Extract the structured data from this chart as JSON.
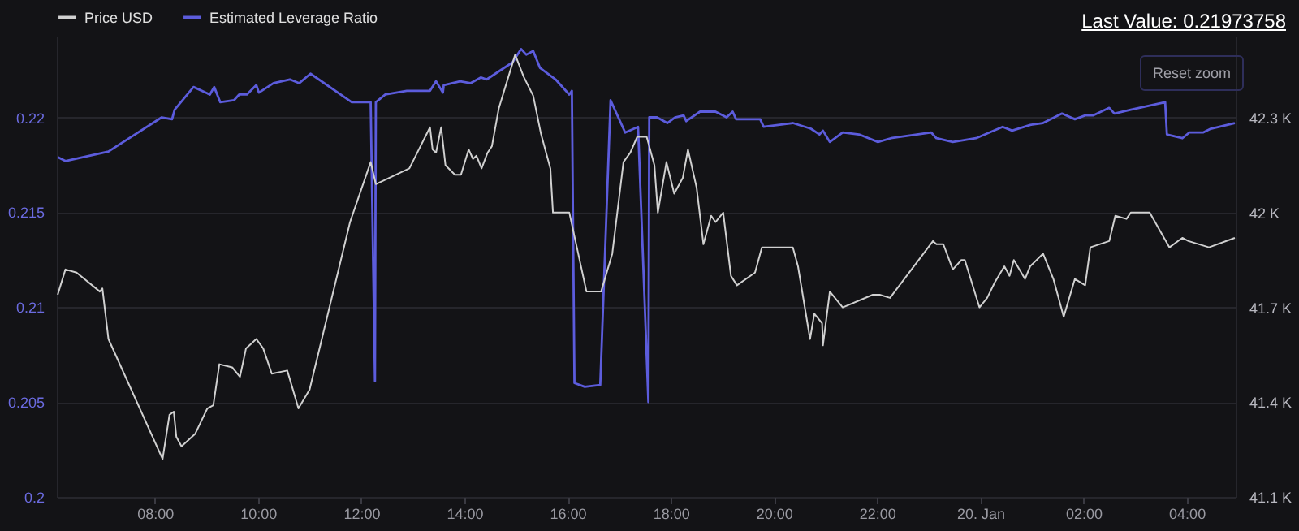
{
  "chart_data": {
    "type": "line",
    "annotations": [
      "Last Value: 0.21973758",
      "Reset zoom"
    ],
    "xlim": [
      "--01-19T06:06",
      "--01-20T04:57"
    ],
    "xticks": [
      {
        "value": "--01-19T08:00",
        "label": "08:00"
      },
      {
        "value": "--01-19T10:00",
        "label": "10:00"
      },
      {
        "value": "--01-19T12:00",
        "label": "12:00"
      },
      {
        "value": "--01-19T14:00",
        "label": "14:00"
      },
      {
        "value": "--01-19T16:00",
        "label": "16:00"
      },
      {
        "value": "--01-19T18:00",
        "label": "18:00"
      },
      {
        "value": "--01-19T20:00",
        "label": "20:00"
      },
      {
        "value": "--01-19T22:00",
        "label": "22:00"
      },
      {
        "value": "--01-20T00:00",
        "label": "20. Jan"
      },
      {
        "value": "--01-20T02:00",
        "label": "02:00"
      },
      {
        "value": "--01-20T04:00",
        "label": "04:00"
      }
    ],
    "ylim": [
      0.2,
      0.2243
    ],
    "yticks": [
      0.2,
      0.205,
      0.21,
      0.215,
      0.22
    ],
    "y2lim": [
      41100,
      42560
    ],
    "y2ticks": [
      {
        "value": 41100,
        "label": "41.1 K"
      },
      {
        "value": 41400,
        "label": "41.4 K"
      },
      {
        "value": 41700,
        "label": "41.7 K"
      },
      {
        "value": 42000,
        "label": "42 K"
      },
      {
        "value": 42300,
        "label": "42.3 K"
      }
    ],
    "grid": "y",
    "legend": "top",
    "series": [
      {
        "name": "Price USD",
        "color": "#d0d0d0",
        "axis": "y2",
        "x": [
          "--01-19T06:07",
          "--01-19T06:16",
          "--01-19T06:29",
          "--01-19T06:56",
          "--01-19T06:59",
          "--01-19T07:06",
          "--01-19T08:09",
          "--01-19T08:17",
          "--01-19T08:22",
          "--01-19T08:25",
          "--01-19T08:31",
          "--01-19T08:47",
          "--01-19T09:01",
          "--01-19T09:08",
          "--01-19T09:15",
          "--01-19T09:30",
          "--01-19T09:39",
          "--01-19T09:46",
          "--01-19T09:58",
          "--01-19T10:06",
          "--01-19T10:16",
          "--01-19T10:34",
          "--01-19T10:47",
          "--01-19T11:00",
          "--01-19T11:47",
          "--01-19T12:11",
          "--01-19T12:17",
          "--01-19T12:56",
          "--01-19T13:20",
          "--01-19T13:23",
          "--01-19T13:27",
          "--01-19T13:33",
          "--01-19T13:38",
          "--01-19T13:49",
          "--01-19T13:56",
          "--01-19T14:05",
          "--01-19T14:10",
          "--01-19T14:14",
          "--01-19T14:20",
          "--01-19T14:27",
          "--01-19T14:32",
          "--01-19T14:40",
          "--01-19T14:59",
          "--01-19T15:09",
          "--01-19T15:20",
          "--01-19T15:29",
          "--01-19T15:40",
          "--01-19T15:43",
          "--01-19T16:02",
          "--01-19T16:22",
          "--01-19T16:39",
          "--01-19T16:52",
          "--01-19T17:05",
          "--01-19T17:13",
          "--01-19T17:21",
          "--01-19T17:32",
          "--01-19T17:41",
          "--01-19T17:45",
          "--01-19T17:55",
          "--01-19T18:04",
          "--01-19T18:14",
          "--01-19T18:20",
          "--01-19T18:30",
          "--01-19T18:38",
          "--01-19T18:47",
          "--01-19T18:52",
          "--01-19T19:01",
          "--01-19T19:10",
          "--01-19T19:17",
          "--01-19T19:38",
          "--01-19T19:46",
          "--01-19T20:22",
          "--01-19T20:28",
          "--01-19T20:42",
          "--01-19T20:47",
          "--01-19T20:56",
          "--01-19T20:57",
          "--01-19T21:05",
          "--01-19T21:20",
          "--01-19T21:55",
          "--01-19T22:03",
          "--01-19T22:15",
          "--01-19T23:05",
          "--01-19T23:09",
          "--01-19T23:17",
          "--01-19T23:28",
          "--01-19T23:38",
          "--01-19T23:42",
          "--01-19T23:59",
          "--01-20T00:08",
          "--01-20T00:17",
          "--01-20T00:28",
          "--01-20T00:34",
          "--01-20T00:39",
          "--01-20T00:52",
          "--01-20T00:58",
          "--01-20T01:13",
          "--01-20T01:25",
          "--01-20T01:37",
          "--01-20T01:50",
          "--01-20T02:02",
          "--01-20T02:08",
          "--01-20T02:30",
          "--01-20T02:37",
          "--01-20T02:50",
          "--01-20T02:55",
          "--01-20T03:17",
          "--01-20T03:40",
          "--01-20T03:55",
          "--01-20T04:02",
          "--01-20T04:26",
          "--01-20T04:56"
        ],
        "values": [
          41740,
          41820,
          41810,
          41750,
          41760,
          41600,
          41220,
          41360,
          41370,
          41290,
          41260,
          41300,
          41380,
          41390,
          41520,
          41510,
          41480,
          41570,
          41600,
          41570,
          41490,
          41500,
          41380,
          41440,
          41970,
          42160,
          42090,
          42140,
          42270,
          42200,
          42190,
          42270,
          42150,
          42120,
          42120,
          42200,
          42170,
          42180,
          42140,
          42190,
          42210,
          42330,
          42500,
          42430,
          42370,
          42250,
          42140,
          42000,
          42000,
          41750,
          41750,
          41870,
          42160,
          42190,
          42240,
          42240,
          42150,
          42000,
          42160,
          42060,
          42110,
          42200,
          42080,
          41900,
          41990,
          41970,
          42000,
          41800,
          41770,
          41810,
          41890,
          41890,
          41830,
          41600,
          41680,
          41650,
          41580,
          41750,
          41700,
          41740,
          41740,
          41730,
          41910,
          41900,
          41900,
          41820,
          41850,
          41850,
          41700,
          41730,
          41780,
          41830,
          41800,
          41850,
          41790,
          41830,
          41870,
          41790,
          41670,
          41790,
          41770,
          41890,
          41910,
          41990,
          41980,
          42000,
          42000,
          41890,
          41920,
          41910,
          41890,
          41920
        ]
      },
      {
        "name": "Estimated Leverage Ratio",
        "color": "#5c5cdc",
        "axis": "y",
        "x": [
          "--01-19T06:07",
          "--01-19T06:16",
          "--01-19T07:06",
          "--01-19T08:08",
          "--01-19T08:20",
          "--01-19T08:23",
          "--01-19T08:45",
          "--01-19T09:04",
          "--01-19T09:09",
          "--01-19T09:16",
          "--01-19T09:32",
          "--01-19T09:38",
          "--01-19T09:47",
          "--01-19T09:58",
          "--01-19T10:01",
          "--01-19T10:18",
          "--01-19T10:37",
          "--01-19T10:48",
          "--01-19T11:01",
          "--01-19T11:49",
          "--01-19T12:11",
          "--01-19T12:16",
          "--01-19T12:17",
          "--01-19T12:28",
          "--01-19T12:53",
          "--01-19T13:20",
          "--01-19T13:27",
          "--01-19T13:35",
          "--01-19T13:36",
          "--01-19T13:55",
          "--01-19T14:07",
          "--01-19T14:19",
          "--01-19T14:26",
          "--01-19T14:56",
          "--01-19T15:06",
          "--01-19T15:12",
          "--01-19T15:20",
          "--01-19T15:28",
          "--01-19T15:46",
          "--01-19T16:02",
          "--01-19T16:05",
          "--01-19T16:08",
          "--01-19T16:20",
          "--01-19T16:38",
          "--01-19T16:50",
          "--01-19T17:07",
          "--01-19T17:22",
          "--01-19T17:34",
          "--01-19T17:35",
          "--01-19T17:44",
          "--01-19T17:56",
          "--01-19T18:05",
          "--01-19T18:15",
          "--01-19T18:18",
          "--01-19T18:34",
          "--01-19T18:52",
          "--01-19T19:05",
          "--01-19T19:12",
          "--01-19T19:16",
          "--01-19T19:44",
          "--01-19T19:48",
          "--01-19T20:22",
          "--01-19T20:43",
          "--01-19T20:53",
          "--01-19T20:57",
          "--01-19T21:05",
          "--01-19T21:20",
          "--01-19T21:39",
          "--01-19T22:01",
          "--01-19T22:16",
          "--01-19T23:03",
          "--01-19T23:09",
          "--01-19T23:28",
          "--01-19T23:55",
          "--01-20T00:26",
          "--01-20T00:37",
          "--01-20T00:58",
          "--01-20T01:13",
          "--01-20T01:35",
          "--01-20T01:50",
          "--01-20T02:02",
          "--01-20T02:11",
          "--01-20T02:30",
          "--01-20T02:36",
          "--01-20T02:55",
          "--01-20T03:35",
          "--01-20T03:37",
          "--01-20T03:55",
          "--01-20T04:03",
          "--01-20T04:19",
          "--01-20T04:28",
          "--01-20T04:56"
        ],
        "values": [
          0.2179,
          0.2177,
          0.2182,
          0.22,
          0.2199,
          0.2204,
          0.2216,
          0.2212,
          0.2216,
          0.2208,
          0.2209,
          0.2212,
          0.2212,
          0.2217,
          0.2213,
          0.2218,
          0.222,
          0.2218,
          0.2223,
          0.2208,
          0.2208,
          0.2061,
          0.2208,
          0.2212,
          0.2214,
          0.2214,
          0.2219,
          0.2213,
          0.2217,
          0.2219,
          0.2218,
          0.2221,
          0.222,
          0.2229,
          0.2236,
          0.2233,
          0.2235,
          0.2226,
          0.222,
          0.2212,
          0.2214,
          0.206,
          0.2058,
          0.2059,
          0.2209,
          0.2192,
          0.2195,
          0.205,
          0.22,
          0.22,
          0.2197,
          0.22,
          0.2201,
          0.2198,
          0.2203,
          0.2203,
          0.22,
          0.2203,
          0.2199,
          0.2199,
          0.2195,
          0.2197,
          0.2194,
          0.2191,
          0.2193,
          0.2187,
          0.2192,
          0.2191,
          0.2187,
          0.2189,
          0.2192,
          0.2189,
          0.2187,
          0.2189,
          0.2195,
          0.2193,
          0.2196,
          0.2197,
          0.2202,
          0.2199,
          0.2201,
          0.2201,
          0.2205,
          0.2202,
          0.2204,
          0.2208,
          0.2191,
          0.2189,
          0.2192,
          0.2192,
          0.2194,
          0.2197
        ]
      }
    ]
  }
}
